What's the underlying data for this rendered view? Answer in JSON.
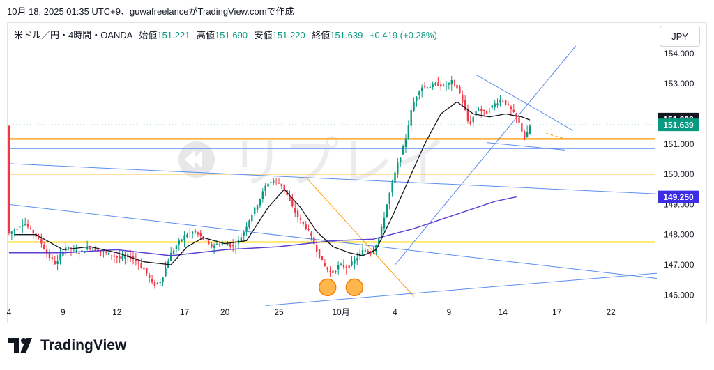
{
  "header": {
    "publish_line": "10月 18, 2025 01:35 UTC+9、guwafreelanceがTradingView.comで作成"
  },
  "legend": {
    "symbol": "米ドル／円・4時間・OANDA",
    "open_label": "始値",
    "open_value": "151.221",
    "high_label": "高値",
    "high_value": "151.690",
    "low_label": "安値",
    "low_value": "151.220",
    "close_label": "終値",
    "close_value": "151.639",
    "change": "+0.419 (+0.28%)"
  },
  "currency": "JPY",
  "watermark": "リプレイ",
  "brand": "TradingView",
  "colors": {
    "up": "#089981",
    "down": "#f23645",
    "sma_short": "#131722",
    "sma_long": "#5b3fd1",
    "trendline": "#5b8def",
    "support": "#ff9800",
    "level_yellow": "#ffd600",
    "tag_dark": "#131722",
    "tag_green": "#089981",
    "tag_purple": "#3d2ee6"
  },
  "chart_data": {
    "type": "candlestick",
    "symbol": "USDJPY",
    "y_ticks": [
      "154.000",
      "153.000",
      "151.000",
      "150.000",
      "149.000",
      "148.000",
      "147.000",
      "146.000"
    ],
    "x_ticks": [
      "4",
      "9",
      "12",
      "17",
      "20",
      "25",
      "10月",
      "4",
      "9",
      "14",
      "17",
      "22"
    ],
    "ylim": [
      145.6,
      154.6
    ],
    "price_tags": [
      {
        "label": "151.828",
        "value": 151.828,
        "style": "dark"
      },
      {
        "label": "151.639",
        "value": 151.639,
        "style": "green"
      },
      {
        "label": "149.250",
        "value": 149.25,
        "style": "purple"
      }
    ],
    "horizontal_levels": [
      {
        "value": 151.17,
        "color": "orange"
      },
      {
        "value": 150.85,
        "color": "blue"
      },
      {
        "value": 150.0,
        "color": "yellow-thin"
      },
      {
        "value": 147.75,
        "color": "yellow"
      }
    ],
    "path_points": [
      [
        0,
        148.0
      ],
      [
        3,
        148.2
      ],
      [
        6,
        148.4
      ],
      [
        9,
        148.1
      ],
      [
        12,
        147.8
      ],
      [
        15,
        147.3
      ],
      [
        18,
        147.0
      ],
      [
        21,
        147.6
      ],
      [
        24,
        147.5
      ],
      [
        27,
        147.4
      ],
      [
        30,
        147.6
      ],
      [
        33,
        147.5
      ],
      [
        36,
        147.4
      ],
      [
        39,
        147.3
      ],
      [
        42,
        147.2
      ],
      [
        45,
        147.3
      ],
      [
        48,
        147.1
      ],
      [
        51,
        146.8
      ],
      [
        54,
        146.3
      ],
      [
        57,
        146.5
      ],
      [
        60,
        147.3
      ],
      [
        63,
        147.7
      ],
      [
        66,
        148.0
      ],
      [
        69,
        148.1
      ],
      [
        72,
        147.9
      ],
      [
        75,
        147.6
      ],
      [
        78,
        147.7
      ],
      [
        81,
        147.7
      ],
      [
        84,
        147.6
      ],
      [
        87,
        148.0
      ],
      [
        90,
        148.6
      ],
      [
        93,
        149.1
      ],
      [
        96,
        149.7
      ],
      [
        99,
        149.8
      ],
      [
        102,
        149.6
      ],
      [
        105,
        149.0
      ],
      [
        108,
        148.5
      ],
      [
        111,
        148.2
      ],
      [
        114,
        147.6
      ],
      [
        117,
        147.0
      ],
      [
        120,
        146.7
      ],
      [
        123,
        147.0
      ],
      [
        126,
        146.9
      ],
      [
        129,
        147.2
      ],
      [
        132,
        147.5
      ],
      [
        135,
        147.4
      ],
      [
        138,
        148.0
      ],
      [
        141,
        149.2
      ],
      [
        144,
        150.2
      ],
      [
        147,
        151.0
      ],
      [
        150,
        152.3
      ],
      [
        153,
        152.9
      ],
      [
        156,
        152.9
      ],
      [
        159,
        153.0
      ],
      [
        162,
        152.9
      ],
      [
        165,
        153.1
      ],
      [
        168,
        152.6
      ],
      [
        171,
        151.6
      ],
      [
        174,
        152.2
      ],
      [
        177,
        152.0
      ],
      [
        180,
        152.3
      ],
      [
        183,
        152.5
      ],
      [
        186,
        152.2
      ],
      [
        189,
        151.8
      ],
      [
        192,
        151.1
      ],
      [
        193,
        151.6
      ]
    ],
    "sma_short": [
      [
        2,
        148.0
      ],
      [
        10,
        148.0
      ],
      [
        20,
        147.5
      ],
      [
        30,
        147.6
      ],
      [
        40,
        147.4
      ],
      [
        50,
        147.1
      ],
      [
        60,
        147.0
      ],
      [
        66,
        147.6
      ],
      [
        72,
        147.9
      ],
      [
        80,
        147.7
      ],
      [
        88,
        147.8
      ],
      [
        96,
        148.9
      ],
      [
        102,
        149.5
      ],
      [
        108,
        148.9
      ],
      [
        114,
        148.1
      ],
      [
        120,
        147.6
      ],
      [
        126,
        147.4
      ],
      [
        131,
        147.3
      ],
      [
        136,
        147.5
      ],
      [
        142,
        148.6
      ],
      [
        148,
        149.8
      ],
      [
        154,
        151.0
      ],
      [
        160,
        152.0
      ],
      [
        166,
        152.4
      ],
      [
        172,
        152.0
      ],
      [
        178,
        151.9
      ],
      [
        184,
        152.0
      ],
      [
        190,
        151.9
      ],
      [
        193,
        151.8
      ]
    ],
    "sma_long": [
      [
        0,
        147.4
      ],
      [
        20,
        147.4
      ],
      [
        40,
        147.5
      ],
      [
        60,
        147.3
      ],
      [
        80,
        147.5
      ],
      [
        100,
        147.6
      ],
      [
        120,
        147.8
      ],
      [
        135,
        147.85
      ],
      [
        150,
        148.2
      ],
      [
        160,
        148.5
      ],
      [
        170,
        148.8
      ],
      [
        180,
        149.1
      ],
      [
        188,
        149.25
      ]
    ],
    "highlighted_lows": [
      146.3,
      146.3
    ]
  }
}
